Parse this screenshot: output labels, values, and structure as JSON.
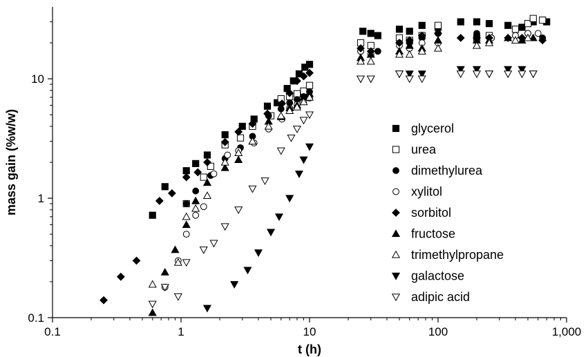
{
  "chart_data": {
    "type": "scatter",
    "xlabel": "t (h)",
    "ylabel": "mass gain (%w/w)",
    "x_scale": "log",
    "y_scale": "log",
    "xlim": [
      0.1,
      1000
    ],
    "ylim": [
      0.1,
      40
    ],
    "x_ticks": [
      {
        "value": 0.1,
        "label": "0.1"
      },
      {
        "value": 1,
        "label": "1"
      },
      {
        "value": 10,
        "label": "10"
      },
      {
        "value": 100,
        "label": "100"
      },
      {
        "value": 1000,
        "label": "1,000"
      }
    ],
    "y_ticks": [
      {
        "value": 0.1,
        "label": "0.1"
      },
      {
        "value": 1,
        "label": "1"
      },
      {
        "value": 10,
        "label": "10"
      }
    ],
    "grid": false,
    "legend_position": "right",
    "series": [
      {
        "name": "glycerol",
        "marker": "square-filled",
        "points": [
          [
            0.6,
            0.72
          ],
          [
            0.75,
            1.25
          ],
          [
            1.1,
            1.7
          ],
          [
            1.3,
            1.95
          ],
          [
            1.6,
            2.3
          ],
          [
            2.2,
            3.4
          ],
          [
            3.0,
            4.0
          ],
          [
            3.7,
            4.6
          ],
          [
            4.7,
            5.9
          ],
          [
            5.6,
            6.3
          ],
          [
            6.7,
            8.3
          ],
          [
            7.5,
            9.6
          ],
          [
            8.3,
            11.0
          ],
          [
            9.2,
            12.5
          ],
          [
            10.0,
            13.2
          ],
          [
            26,
            25
          ],
          [
            30,
            24
          ],
          [
            34,
            23
          ],
          [
            50,
            26
          ],
          [
            60,
            25
          ],
          [
            75,
            28
          ],
          [
            100,
            27
          ],
          [
            150,
            30
          ],
          [
            200,
            30
          ],
          [
            250,
            29
          ],
          [
            350,
            28
          ],
          [
            450,
            27
          ],
          [
            550,
            30
          ],
          [
            700,
            30
          ]
        ]
      },
      {
        "name": "urea",
        "marker": "square-open",
        "points": [
          [
            1.1,
            0.9
          ],
          [
            1.5,
            1.5
          ],
          [
            1.7,
            1.85
          ],
          [
            2.2,
            2.8
          ],
          [
            2.9,
            3.2
          ],
          [
            3.6,
            4.0
          ],
          [
            5.0,
            4.9
          ],
          [
            6.0,
            6.8
          ],
          [
            7.0,
            7.1
          ],
          [
            8.0,
            7.5
          ],
          [
            9.0,
            7.9
          ],
          [
            10.0,
            8.8
          ],
          [
            25,
            20
          ],
          [
            30,
            19
          ],
          [
            50,
            22
          ],
          [
            60,
            21
          ],
          [
            75,
            23
          ],
          [
            100,
            28
          ],
          [
            200,
            22
          ],
          [
            250,
            23
          ],
          [
            400,
            26
          ],
          [
            500,
            29
          ],
          [
            550,
            32
          ],
          [
            650,
            31
          ]
        ]
      },
      {
        "name": "dimethylurea",
        "marker": "circle-filled",
        "points": [
          [
            1.1,
            0.9
          ],
          [
            1.3,
            1.15
          ],
          [
            1.7,
            1.55
          ],
          [
            2.2,
            2.15
          ],
          [
            2.9,
            2.65
          ],
          [
            3.6,
            3.3
          ],
          [
            4.8,
            4.9
          ],
          [
            6.0,
            5.6
          ],
          [
            7.0,
            6.3
          ],
          [
            8.0,
            6.7
          ],
          [
            9.0,
            7.1
          ],
          [
            10.0,
            7.8
          ],
          [
            25,
            17
          ],
          [
            30,
            16
          ],
          [
            34,
            17
          ],
          [
            50,
            20
          ],
          [
            60,
            20
          ],
          [
            75,
            22
          ],
          [
            100,
            24
          ],
          [
            200,
            24
          ],
          [
            260,
            22
          ],
          [
            400,
            23
          ],
          [
            500,
            24
          ],
          [
            650,
            22
          ]
        ]
      },
      {
        "name": "xylitol",
        "marker": "circle-open",
        "points": [
          [
            0.75,
            0.18
          ],
          [
            0.95,
            0.3
          ],
          [
            1.1,
            0.5
          ],
          [
            1.3,
            0.72
          ],
          [
            1.5,
            0.85
          ],
          [
            1.8,
            1.6
          ],
          [
            2.3,
            2.3
          ],
          [
            2.8,
            2.5
          ],
          [
            3.7,
            2.9
          ],
          [
            4.8,
            3.8
          ],
          [
            6.1,
            4.6
          ],
          [
            7.0,
            5.7
          ],
          [
            8.0,
            6.1
          ],
          [
            9.0,
            6.5
          ],
          [
            10.0,
            6.9
          ],
          [
            25,
            17
          ],
          [
            30,
            16
          ],
          [
            50,
            19
          ],
          [
            60,
            18
          ],
          [
            75,
            20
          ],
          [
            100,
            20
          ],
          [
            200,
            22
          ],
          [
            260,
            22
          ],
          [
            400,
            23
          ],
          [
            500,
            24
          ],
          [
            600,
            24
          ]
        ]
      },
      {
        "name": "sorbitol",
        "marker": "diamond-filled",
        "points": [
          [
            0.25,
            0.14
          ],
          [
            0.34,
            0.22
          ],
          [
            0.45,
            0.3
          ],
          [
            0.68,
            0.95
          ],
          [
            0.85,
            1.1
          ],
          [
            1.1,
            1.5
          ],
          [
            1.35,
            1.65
          ],
          [
            1.6,
            2.0
          ],
          [
            2.2,
            2.95
          ],
          [
            2.8,
            3.6
          ],
          [
            3.6,
            4.2
          ],
          [
            4.7,
            5.1
          ],
          [
            6.1,
            6.2
          ],
          [
            7.0,
            7.6
          ],
          [
            8.0,
            9.6
          ],
          [
            9.0,
            10.5
          ],
          [
            10.0,
            11.2
          ],
          [
            25,
            18
          ],
          [
            30,
            17
          ],
          [
            50,
            20
          ],
          [
            60,
            21
          ],
          [
            75,
            23
          ],
          [
            100,
            24
          ],
          [
            150,
            22
          ],
          [
            200,
            22
          ],
          [
            250,
            22
          ],
          [
            350,
            22
          ],
          [
            450,
            22
          ],
          [
            650,
            21
          ]
        ]
      },
      {
        "name": "fructose",
        "marker": "triangle-filled",
        "points": [
          [
            0.6,
            0.11
          ],
          [
            0.75,
            0.24
          ],
          [
            0.9,
            0.37
          ],
          [
            1.1,
            0.6
          ],
          [
            1.3,
            0.95
          ],
          [
            1.6,
            1.35
          ],
          [
            2.2,
            1.8
          ],
          [
            2.8,
            2.1
          ],
          [
            3.6,
            3.0
          ],
          [
            4.8,
            4.4
          ],
          [
            6.0,
            4.8
          ],
          [
            7.0,
            5.7
          ],
          [
            8.0,
            6.0
          ],
          [
            9.0,
            7.0
          ],
          [
            10.0,
            7.5
          ],
          [
            25,
            15
          ],
          [
            30,
            16
          ],
          [
            50,
            17
          ],
          [
            60,
            19
          ],
          [
            75,
            18
          ],
          [
            100,
            21
          ],
          [
            200,
            21
          ],
          [
            250,
            21
          ],
          [
            350,
            22
          ],
          [
            450,
            21
          ],
          [
            550,
            22
          ]
        ]
      },
      {
        "name": "trimethylpropane",
        "marker": "triangle-open",
        "points": [
          [
            0.6,
            0.19
          ],
          [
            0.95,
            0.29
          ],
          [
            1.1,
            0.7
          ],
          [
            1.3,
            0.82
          ],
          [
            1.6,
            1.05
          ],
          [
            2.2,
            2.0
          ],
          [
            2.8,
            2.4
          ],
          [
            3.6,
            3.0
          ],
          [
            4.8,
            4.0
          ],
          [
            6.0,
            4.9
          ],
          [
            7.0,
            5.4
          ],
          [
            8.0,
            5.8
          ],
          [
            9.0,
            6.4
          ],
          [
            10.0,
            7.0
          ],
          [
            25,
            14
          ],
          [
            30,
            14
          ],
          [
            50,
            16
          ],
          [
            60,
            16
          ],
          [
            75,
            17
          ],
          [
            100,
            18
          ],
          [
            200,
            19
          ],
          [
            250,
            20
          ],
          [
            400,
            21
          ],
          [
            500,
            22
          ]
        ]
      },
      {
        "name": "galactose",
        "marker": "triangle-down-filled",
        "points": [
          [
            1.6,
            0.12
          ],
          [
            2.6,
            0.19
          ],
          [
            3.3,
            0.25
          ],
          [
            4.0,
            0.35
          ],
          [
            5.0,
            0.52
          ],
          [
            5.8,
            0.7
          ],
          [
            7.0,
            1.0
          ],
          [
            8.3,
            1.6
          ],
          [
            9.0,
            2.1
          ],
          [
            10.0,
            2.7
          ],
          [
            25,
            10
          ],
          [
            30,
            10
          ],
          [
            50,
            11
          ],
          [
            60,
            11
          ],
          [
            75,
            11
          ],
          [
            150,
            12
          ],
          [
            200,
            12
          ],
          [
            250,
            11
          ],
          [
            350,
            12
          ],
          [
            450,
            12
          ],
          [
            550,
            11
          ]
        ]
      },
      {
        "name": "adipic acid",
        "marker": "triangle-down-open",
        "points": [
          [
            0.6,
            0.13
          ],
          [
            0.75,
            0.18
          ],
          [
            0.95,
            0.15
          ],
          [
            1.1,
            0.29
          ],
          [
            1.5,
            0.37
          ],
          [
            1.8,
            0.42
          ],
          [
            2.2,
            0.58
          ],
          [
            2.8,
            0.8
          ],
          [
            3.6,
            1.2
          ],
          [
            4.5,
            1.4
          ],
          [
            6.0,
            2.5
          ],
          [
            7.2,
            3.2
          ],
          [
            8.0,
            3.8
          ],
          [
            9.0,
            4.5
          ],
          [
            10.0,
            5.0
          ],
          [
            25,
            10
          ],
          [
            30,
            10
          ],
          [
            50,
            11
          ],
          [
            60,
            10
          ],
          [
            75,
            10
          ],
          [
            150,
            11
          ],
          [
            200,
            11
          ],
          [
            250,
            11
          ],
          [
            350,
            11
          ],
          [
            450,
            11
          ],
          [
            550,
            11
          ]
        ]
      }
    ]
  }
}
